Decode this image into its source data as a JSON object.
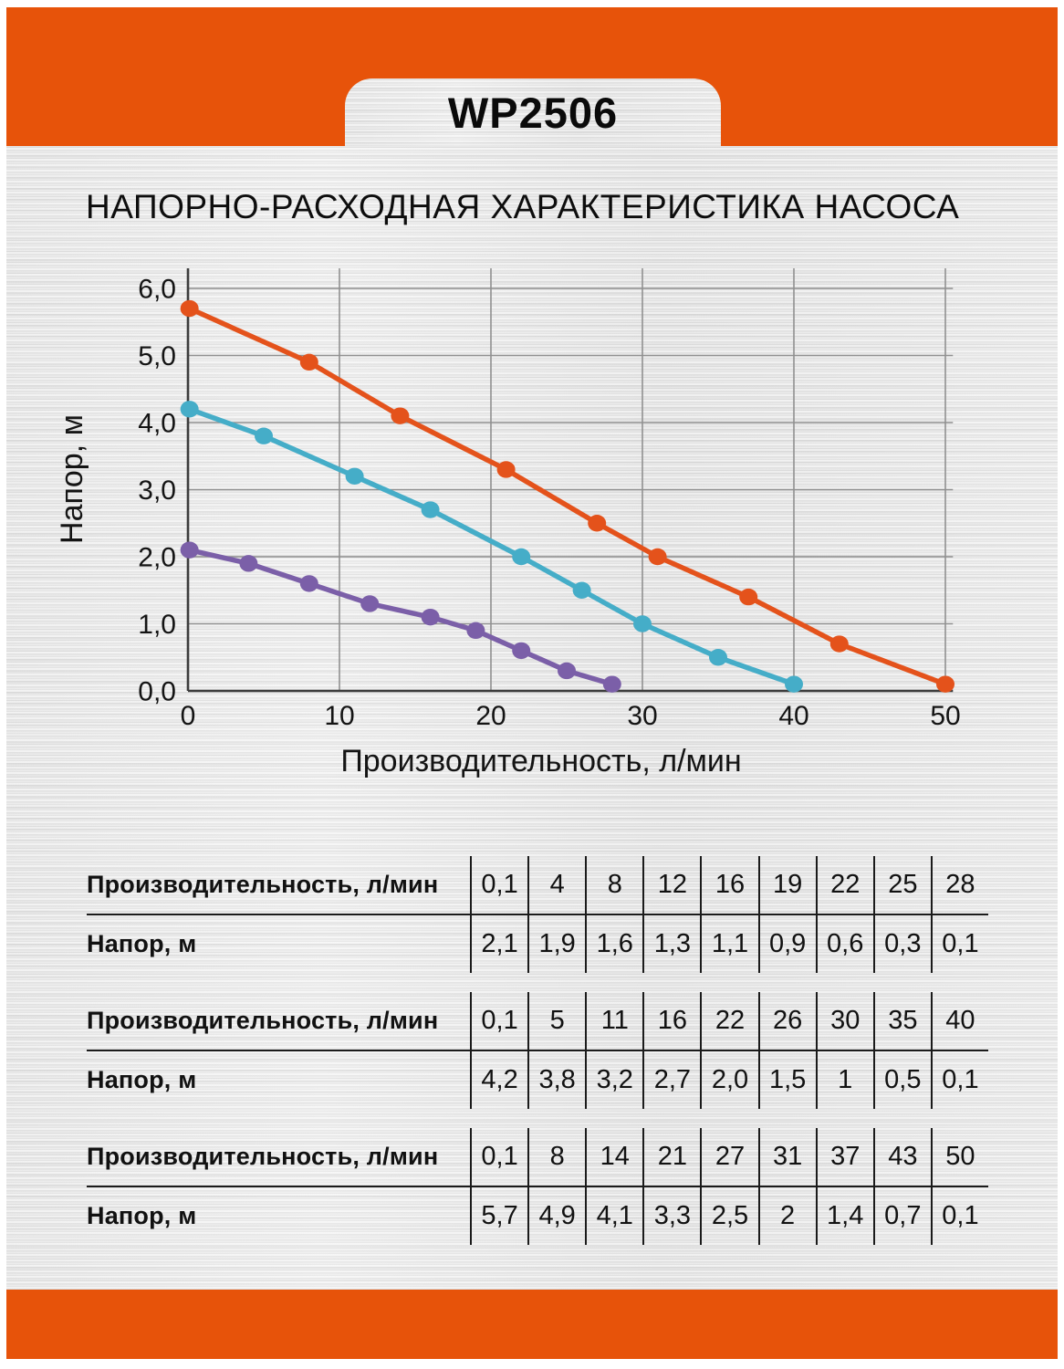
{
  "header": {
    "model_tab": "WP2506"
  },
  "title": "НАПОРНО-РАСХОДНАЯ ХАРАКТЕРИСТИКА НАСОСА",
  "colors": {
    "header_orange": "#E7530A",
    "series_orange": "#E4521B",
    "series_cyan": "#45ADC8",
    "series_purple": "#7B5FA8",
    "grid_gray": "#909090",
    "axis_dark": "#3c3c3c"
  },
  "chart_data": {
    "type": "line",
    "title": "НАПОРНО-РАСХОДНАЯ ХАРАКТЕРИСТИКА НАСОСА",
    "xlabel": "Производительность, л/мин",
    "ylabel": "Напор, м",
    "xlim": [
      0,
      50.5
    ],
    "ylim": [
      0,
      6.3
    ],
    "grid": true,
    "legend_position": "none",
    "x_ticks": [
      {
        "v": 0,
        "label": "0"
      },
      {
        "v": 10,
        "label": "10"
      },
      {
        "v": 20,
        "label": "20"
      },
      {
        "v": 30,
        "label": "30"
      },
      {
        "v": 40,
        "label": "40"
      },
      {
        "v": 50,
        "label": "50"
      }
    ],
    "y_ticks": [
      {
        "v": 0,
        "label": "0,0"
      },
      {
        "v": 1,
        "label": "1,0"
      },
      {
        "v": 2,
        "label": "2,0"
      },
      {
        "v": 3,
        "label": "3,0"
      },
      {
        "v": 4,
        "label": "4,0"
      },
      {
        "v": 5,
        "label": "5,0"
      },
      {
        "v": 6,
        "label": "6,0"
      }
    ],
    "series": [
      {
        "name": "purple-curve",
        "color": "#7B5FA8",
        "points": [
          [
            0.1,
            2.1
          ],
          [
            4,
            1.9
          ],
          [
            8,
            1.6
          ],
          [
            12,
            1.3
          ],
          [
            16,
            1.1
          ],
          [
            19,
            0.9
          ],
          [
            22,
            0.6
          ],
          [
            25,
            0.3
          ],
          [
            28,
            0.1
          ]
        ]
      },
      {
        "name": "cyan-curve",
        "color": "#45ADC8",
        "points": [
          [
            0.1,
            4.2
          ],
          [
            5,
            3.8
          ],
          [
            11,
            3.2
          ],
          [
            16,
            2.7
          ],
          [
            22,
            2.0
          ],
          [
            26,
            1.5
          ],
          [
            30,
            1
          ],
          [
            35,
            0.5
          ],
          [
            40,
            0.1
          ]
        ]
      },
      {
        "name": "orange-curve",
        "color": "#E4521B",
        "points": [
          [
            0.1,
            5.7
          ],
          [
            8,
            4.9
          ],
          [
            14,
            4.1
          ],
          [
            21,
            3.3
          ],
          [
            27,
            2.5
          ],
          [
            31,
            2
          ],
          [
            37,
            1.4
          ],
          [
            43,
            0.7
          ],
          [
            50,
            0.1
          ]
        ]
      }
    ]
  },
  "tables": [
    {
      "rows": [
        {
          "label": "Производительность, л/мин",
          "values": [
            "0,1",
            "4",
            "8",
            "12",
            "16",
            "19",
            "22",
            "25",
            "28"
          ]
        },
        {
          "label": "Напор, м",
          "values": [
            "2,1",
            "1,9",
            "1,6",
            "1,3",
            "1,1",
            "0,9",
            "0,6",
            "0,3",
            "0,1"
          ]
        }
      ]
    },
    {
      "rows": [
        {
          "label": "Производительность, л/мин",
          "values": [
            "0,1",
            "5",
            "11",
            "16",
            "22",
            "26",
            "30",
            "35",
            "40"
          ]
        },
        {
          "label": "Напор, м",
          "values": [
            "4,2",
            "3,8",
            "3,2",
            "2,7",
            "2,0",
            "1,5",
            "1",
            "0,5",
            "0,1"
          ]
        }
      ]
    },
    {
      "rows": [
        {
          "label": "Производительность, л/мин",
          "values": [
            "0,1",
            "8",
            "14",
            "21",
            "27",
            "31",
            "37",
            "43",
            "50"
          ]
        },
        {
          "label": "Напор, м",
          "values": [
            "5,7",
            "4,9",
            "4,1",
            "3,3",
            "2,5",
            "2",
            "1,4",
            "0,7",
            "0,1"
          ]
        }
      ]
    }
  ]
}
